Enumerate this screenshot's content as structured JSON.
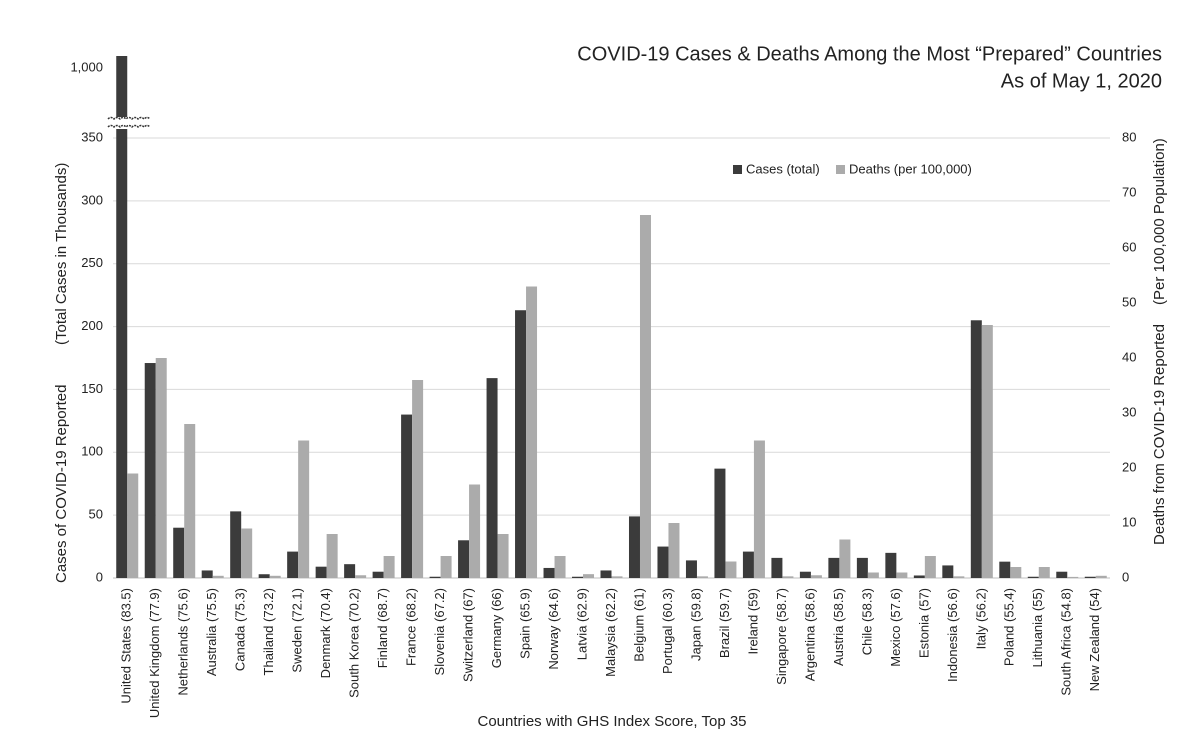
{
  "chart_data": {
    "type": "bar",
    "title": "COVID-19 Cases & Deaths Among the Most “Prepared” Countries",
    "subtitle": "As of May 1, 2020",
    "xlabel": "Countries with GHS Index Score, Top 35",
    "ylabel": [
      "Cases of COVID-19 Reported",
      "(Total Cases in Thousands)"
    ],
    "y2label": [
      "Deaths from COVID-19 Reported",
      "(Per 100,000 Population)"
    ],
    "categories": [
      "United States (83.5)",
      "United Kingdom (77.9)",
      "Netherlands (75.6)",
      "Australia (75.5)",
      "Canada (75.3)",
      "Thailand (73.2)",
      "Sweden (72.1)",
      "Denmark (70.4)",
      "South Korea (70.2)",
      "Finland (68.7)",
      "France (68.2)",
      "Slovenia (67.2)",
      "Switzerland (67)",
      "Germany (66)",
      "Spain (65.9)",
      "Norway (64.6)",
      "Latvia (62.9)",
      "Malaysia (62.2)",
      "Belgium (61)",
      "Portugal (60.3)",
      "Japan (59.8)",
      "Brazil (59.7)",
      "Ireland (59)",
      "Singapore (58.7)",
      "Argentina (58.6)",
      "Austria (58.5)",
      "Chile (58.3)",
      "Mexico (57.6)",
      "Estonia (57)",
      "Indonesia (56.6)",
      "Italy (56.2)",
      "Poland (55.4)",
      "Lithuania (55)",
      "South Africa (54.8)",
      "New Zealand (54)"
    ],
    "series": [
      {
        "name": "Cases (total)",
        "color": "#3b3b3b",
        "axis": "y",
        "values": [
          1100,
          171,
          40,
          6,
          53,
          3,
          21,
          9,
          11,
          5,
          130,
          1,
          30,
          159,
          213,
          8,
          1,
          6,
          49,
          25,
          14,
          87,
          21,
          16,
          5,
          16,
          16,
          20,
          2,
          10,
          205,
          13,
          1,
          5,
          1
        ]
      },
      {
        "name": "Deaths (per 100,000)",
        "color": "#ababab",
        "axis": "y2",
        "values": [
          19,
          40,
          28,
          0.4,
          9,
          0.4,
          25,
          8,
          0.5,
          4,
          36,
          4,
          17,
          8,
          53,
          4,
          0.7,
          0.3,
          66,
          10,
          0.3,
          3,
          25,
          0.3,
          0.5,
          7,
          1,
          1,
          4,
          0.3,
          46,
          2,
          2,
          0.2,
          0.4
        ]
      }
    ],
    "ylim": [
      0,
      1100
    ],
    "ybreak": [
      350,
      1000
    ],
    "yticks": [
      0,
      50,
      100,
      150,
      200,
      250,
      300,
      350,
      {
        "value": 1000,
        "label": "1,000"
      }
    ],
    "y2lim": [
      0,
      80
    ],
    "y2ticks": [
      0,
      10,
      20,
      30,
      40,
      50,
      60,
      70,
      80
    ],
    "grid": true,
    "legend": "top-right"
  }
}
